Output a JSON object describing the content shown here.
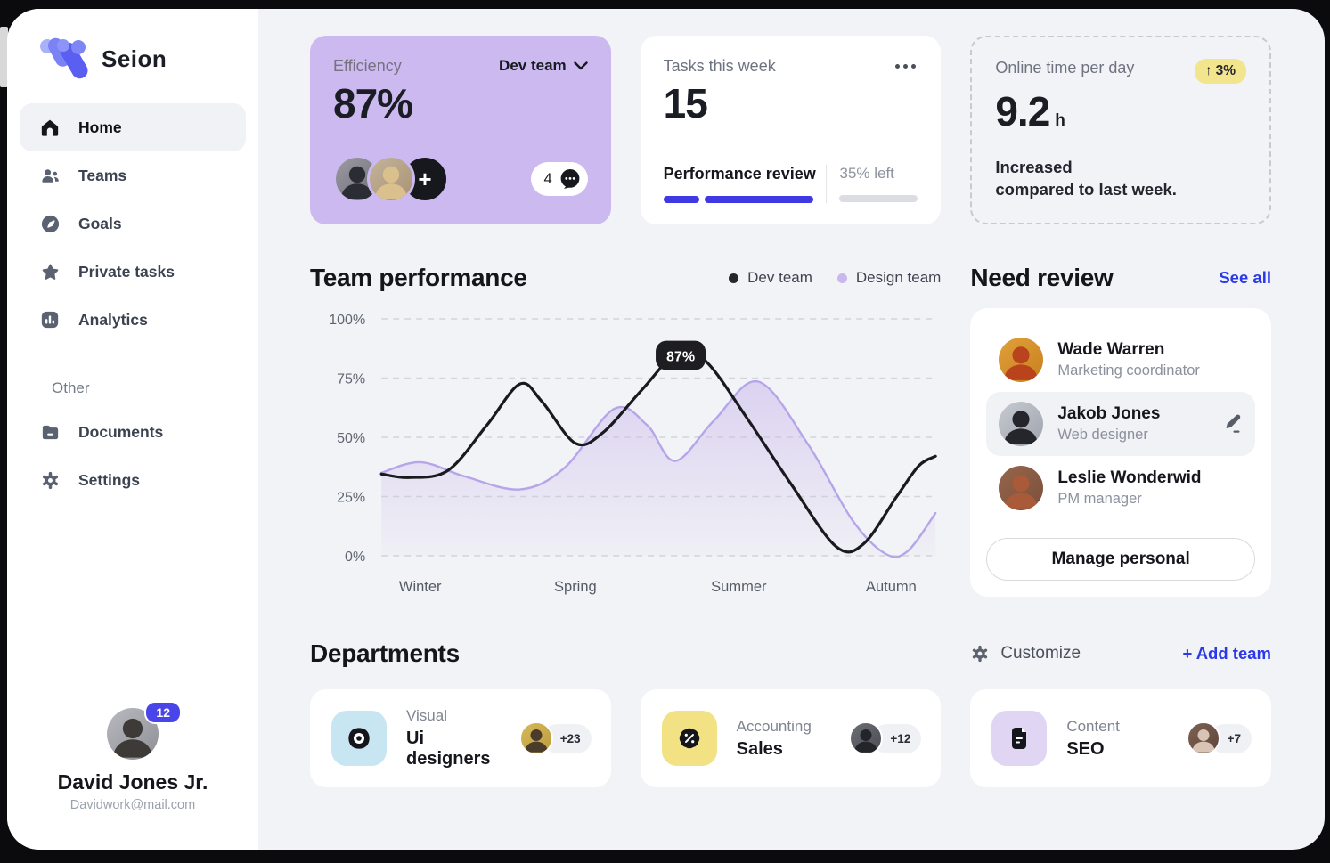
{
  "app": {
    "name": "Seion"
  },
  "sidebar": {
    "items": [
      {
        "label": "Home",
        "active": true
      },
      {
        "label": "Teams"
      },
      {
        "label": "Goals"
      },
      {
        "label": "Private tasks"
      },
      {
        "label": "Analytics"
      }
    ],
    "other_label": "Other",
    "other_items": [
      {
        "label": "Documents"
      },
      {
        "label": "Settings"
      }
    ],
    "profile": {
      "notifications": "12",
      "name": "David Jones Jr.",
      "email": "Davidwork@mail.com"
    }
  },
  "cards": {
    "efficiency": {
      "label": "Efficiency",
      "value": "87%",
      "team_selector": "Dev team",
      "add_label": "+",
      "comments_count": "4"
    },
    "tasks": {
      "label": "Tasks this week",
      "value": "15",
      "task_name": "Performance review",
      "remaining": "35% left"
    },
    "online": {
      "label": "Online time per day",
      "delta": "3%",
      "delta_arrow": "↑",
      "value": "9.2",
      "unit": "h",
      "note_line1": "Increased",
      "note_line2": "compared to last week."
    }
  },
  "performance": {
    "title": "Team performance",
    "legend": [
      {
        "label": "Dev team",
        "color": "#26262b"
      },
      {
        "label": "Design team",
        "color": "#c9b8ec"
      }
    ]
  },
  "chart_data": {
    "type": "area",
    "title": "Team performance",
    "x_labels": [
      "Winter",
      "Spring",
      "Summer",
      "Autumn"
    ],
    "x_label_frac": [
      7,
      35,
      64.5,
      92
    ],
    "y_ticks": [
      "0%",
      "25%",
      "50%",
      "75%",
      "100%"
    ],
    "y_tick_values": [
      0,
      25,
      50,
      75,
      100
    ],
    "ylim": [
      0,
      100
    ],
    "grid": "dashed",
    "legend_position": "top-right",
    "annotation": {
      "series": "Dev team",
      "value": "87%",
      "x": 54,
      "y": 87
    },
    "series": [
      {
        "name": "Design team",
        "type": "area",
        "line_color": "#b6a5e9",
        "fill_color": "#c9b8ec",
        "points": [
          [
            0,
            35
          ],
          [
            7,
            39.5
          ],
          [
            15,
            33.5
          ],
          [
            25,
            28
          ],
          [
            33,
            37
          ],
          [
            42,
            62
          ],
          [
            48,
            55
          ],
          [
            53,
            40
          ],
          [
            60,
            57
          ],
          [
            68,
            73.5
          ],
          [
            77,
            47
          ],
          [
            85,
            15
          ],
          [
            91,
            0.8
          ],
          [
            95,
            2
          ],
          [
            100,
            18
          ]
        ]
      },
      {
        "name": "Dev team",
        "type": "line",
        "line_color": "#191a1e",
        "points": [
          [
            0,
            34.5
          ],
          [
            5,
            33
          ],
          [
            12,
            36
          ],
          [
            19,
            55
          ],
          [
            25,
            72.5
          ],
          [
            29,
            65
          ],
          [
            35,
            47.5
          ],
          [
            40,
            52
          ],
          [
            47,
            70
          ],
          [
            54,
            87
          ],
          [
            59,
            81
          ],
          [
            66,
            58
          ],
          [
            74,
            30
          ],
          [
            82,
            4
          ],
          [
            87,
            5
          ],
          [
            93,
            25
          ],
          [
            97,
            38
          ],
          [
            100,
            42
          ]
        ]
      }
    ]
  },
  "need_review": {
    "title": "Need review",
    "see_all": "See all",
    "people": [
      {
        "name": "Wade Warren",
        "role": "Marketing coordinator"
      },
      {
        "name": "Jakob Jones",
        "role": "Web designer"
      },
      {
        "name": "Leslie Wonderwid",
        "role": "PM manager"
      }
    ],
    "button": "Manage personal"
  },
  "departments": {
    "title": "Departments",
    "customize": "Customize",
    "add_team": "+ Add team",
    "cards": [
      {
        "category": "Visual",
        "name": "Ui designers",
        "count": "+23",
        "tile_color": "#c8e6f1"
      },
      {
        "category": "Accounting",
        "name": "Sales",
        "count": "+12",
        "tile_color": "#f2e284"
      },
      {
        "category": "Content",
        "name": "SEO",
        "count": "+7",
        "tile_color": "#e0d6f3"
      }
    ]
  }
}
